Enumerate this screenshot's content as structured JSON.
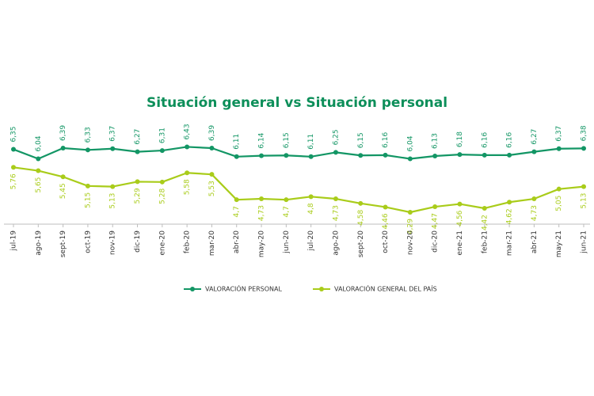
{
  "chart_data": {
    "type": "line",
    "title": "Situación general vs Situación personal",
    "xlabel": "",
    "ylabel": "",
    "categories": [
      "jul-19",
      "ago-19",
      "sept-19",
      "oct-19",
      "nov-19",
      "dic-19",
      "ene-20",
      "feb-20",
      "mar-20",
      "abr-20",
      "may-20",
      "jun-20",
      "jul-20",
      "ago-20",
      "sept-20",
      "oct-20",
      "nov-20",
      "dic-20",
      "ene-21",
      "feb-21",
      "mar-21",
      "abr-21",
      "may-21",
      "jun-21"
    ],
    "series": [
      {
        "name": "VALORACIÓN PERSONAL",
        "color": "#139665",
        "values": [
          6.35,
          6.04,
          6.39,
          6.33,
          6.37,
          6.27,
          6.31,
          6.43,
          6.39,
          6.11,
          6.14,
          6.15,
          6.11,
          6.25,
          6.15,
          6.16,
          6.04,
          6.13,
          6.18,
          6.16,
          6.16,
          6.27,
          6.37,
          6.38
        ],
        "labels": [
          "6,35",
          "6,04",
          "6,39",
          "6,33",
          "6,37",
          "6,27",
          "6,31",
          "6,43",
          "6,39",
          "6,11",
          "6,14",
          "6,15",
          "6,11",
          "6,25",
          "6,15",
          "6,16",
          "6,04",
          "6,13",
          "6,18",
          "6,16",
          "6,16",
          "6,27",
          "6,37",
          "6,38"
        ]
      },
      {
        "name": "VALORACIÓN GENERAL DEL PAÍS",
        "color": "#a9cc1a",
        "values": [
          5.76,
          5.65,
          5.45,
          5.15,
          5.13,
          5.29,
          5.28,
          5.58,
          5.53,
          4.7,
          4.73,
          4.7,
          4.8,
          4.73,
          4.58,
          4.46,
          4.29,
          4.47,
          4.56,
          4.42,
          4.62,
          4.73,
          5.05,
          5.13
        ],
        "labels": [
          "5,76",
          "5,65",
          "5,45",
          "5,15",
          "5,13",
          "5,29",
          "5,28",
          "5,58",
          "5,53",
          "4,7",
          "4,73",
          "4,7",
          "4,8",
          "4,73",
          "4,58",
          "4,46",
          "4,29",
          "4,47",
          "4,56",
          "4,42",
          "4,62",
          "4,73",
          "5,05",
          "5,13"
        ]
      }
    ],
    "legend_position": "bottom",
    "grid": false
  }
}
